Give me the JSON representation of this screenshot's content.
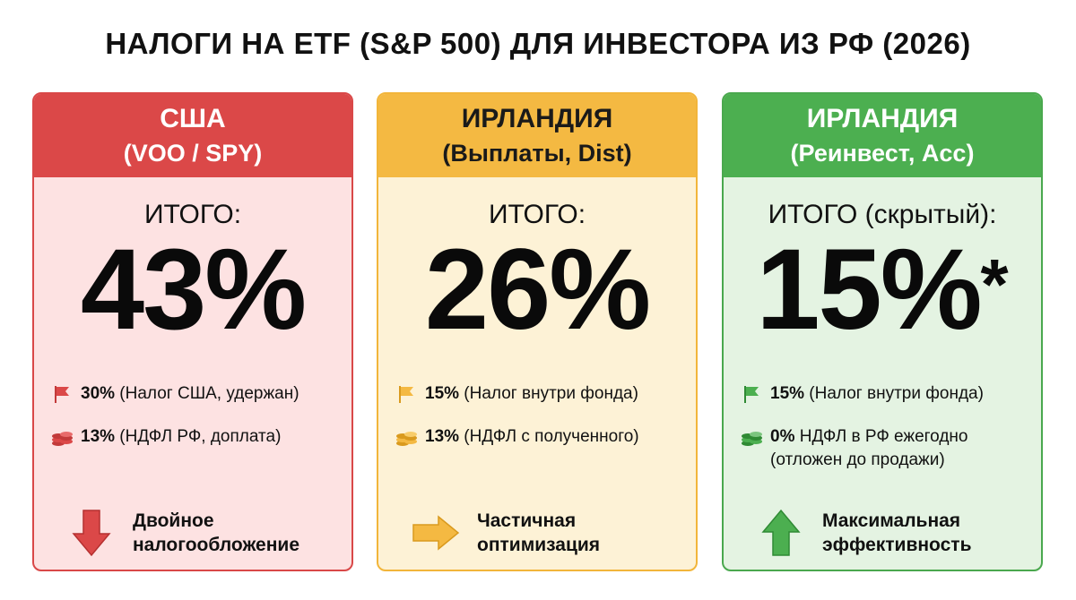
{
  "title": "НАЛОГИ НА ETF (S&P 500) ДЛЯ ИНВЕСТОРА ИЗ РФ (2026)",
  "colors": {
    "red": "#db4848",
    "yellow": "#f4b942",
    "green": "#4caf50"
  },
  "cards": [
    {
      "head1": "США",
      "head2": "(VOO / SPY)",
      "total_label": "ИТОГО:",
      "total_value": "43%",
      "total_mark": "",
      "items": [
        {
          "icon": "flag-icon",
          "bold": "30%",
          "text": " (Налог США, удержан)"
        },
        {
          "icon": "coins-icon",
          "bold": "13%",
          "text": " (НДФЛ РФ, доплата)"
        }
      ],
      "verdict_icon": "arrow-down-icon",
      "verdict_line1": "Двойное",
      "verdict_line2": "налогообложение"
    },
    {
      "head1": "ИРЛАНДИЯ",
      "head2": "(Выплаты, Dist)",
      "total_label": "ИТОГО:",
      "total_value": "26%",
      "total_mark": "",
      "items": [
        {
          "icon": "flag-icon",
          "bold": "15%",
          "text": " (Налог внутри фонда)"
        },
        {
          "icon": "coins-icon",
          "bold": "13%",
          "text": " (НДФЛ с полученного)"
        }
      ],
      "verdict_icon": "arrow-right-icon",
      "verdict_line1": "Частичная",
      "verdict_line2": "оптимизация"
    },
    {
      "head1": "ИРЛАНДИЯ",
      "head2": "(Реинвест, Acc)",
      "total_label": "ИТОГО (скрытый):",
      "total_value": "15%",
      "total_mark": "*",
      "items": [
        {
          "icon": "flag-icon",
          "bold": "15%",
          "text": " (Налог внутри фонда)"
        },
        {
          "icon": "coins-icon",
          "bold": "0%",
          "text": " НДФЛ в РФ ежегодно",
          "text2": "(отложен до продажи)"
        }
      ],
      "verdict_icon": "arrow-up-icon",
      "verdict_line1": "Максимальная",
      "verdict_line2": "эффективность"
    }
  ]
}
